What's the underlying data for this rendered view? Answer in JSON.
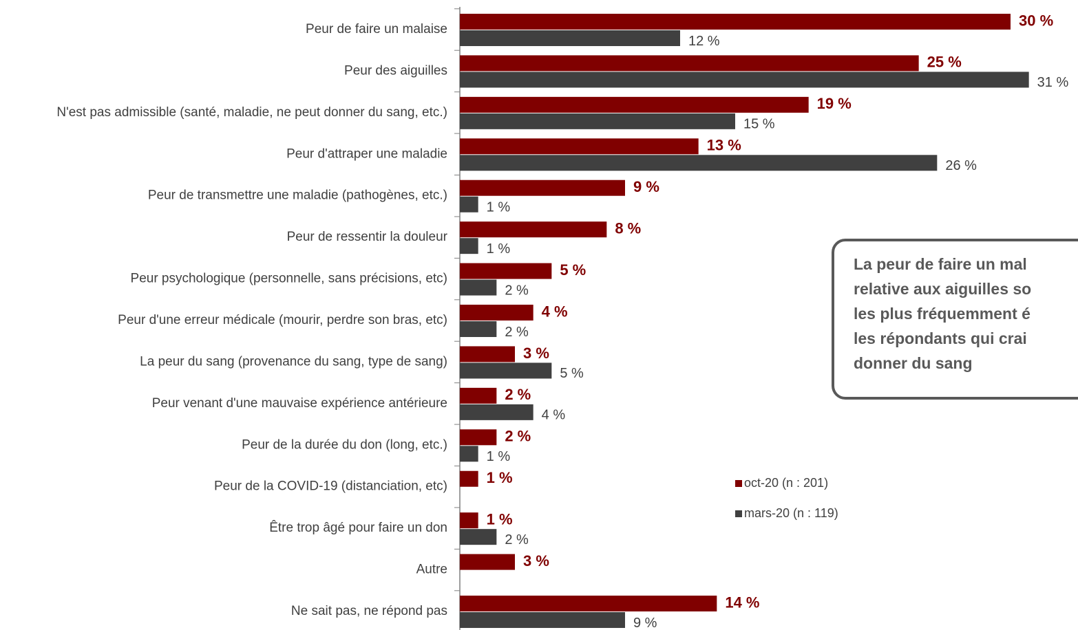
{
  "chart_data": {
    "type": "bar",
    "orientation": "horizontal",
    "categories": [
      "Peur de faire un malaise",
      "Peur des aiguilles",
      "N'est pas admissible (santé, maladie, ne peut donner du sang, etc.)",
      "Peur d'attraper une maladie",
      "Peur de transmettre une maladie (pathogènes, etc.)",
      "Peur de ressentir la douleur",
      "Peur psychologique (personnelle, sans précisions, etc)",
      "Peur d'une erreur médicale (mourir, perdre son bras, etc)",
      "La peur du sang (provenance du sang, type de sang)",
      "Peur venant d'une mauvaise expérience antérieure",
      "Peur de la durée du don (long, etc.)",
      "Peur de la COVID-19 (distanciation, etc)",
      "Être trop âgé pour faire un don",
      "Autre",
      "Ne sait pas, ne répond pas"
    ],
    "series": [
      {
        "name": "oct-20 (n : 201)",
        "color": "#800000",
        "values": [
          30,
          25,
          19,
          13,
          9,
          8,
          5,
          4,
          3,
          2,
          2,
          1,
          1,
          3,
          14
        ],
        "value_labels": [
          "30 %",
          "25 %",
          "19 %",
          "13 %",
          "9 %",
          "8 %",
          "5 %",
          "4 %",
          "3 %",
          "2 %",
          "2 %",
          "1 %",
          "1 %",
          "3 %",
          "14 %"
        ]
      },
      {
        "name": "mars-20 (n : 119)",
        "color": "#404040",
        "values": [
          12,
          31,
          15,
          26,
          1,
          1,
          2,
          2,
          5,
          4,
          1,
          null,
          2,
          null,
          9
        ],
        "value_labels": [
          "12 %",
          "31 %",
          "15 %",
          "26 %",
          "1 %",
          "1 %",
          "2 %",
          "2 %",
          "5 %",
          "4 %",
          "1 %",
          null,
          "2 %",
          null,
          "9 %"
        ]
      }
    ],
    "xlim": [
      0,
      30
    ],
    "annotation": [
      "La peur de faire un mal",
      "relative aux aiguilles so",
      "les plus fréquemment é",
      "les répondants qui crai",
      "donner du sang"
    ]
  }
}
